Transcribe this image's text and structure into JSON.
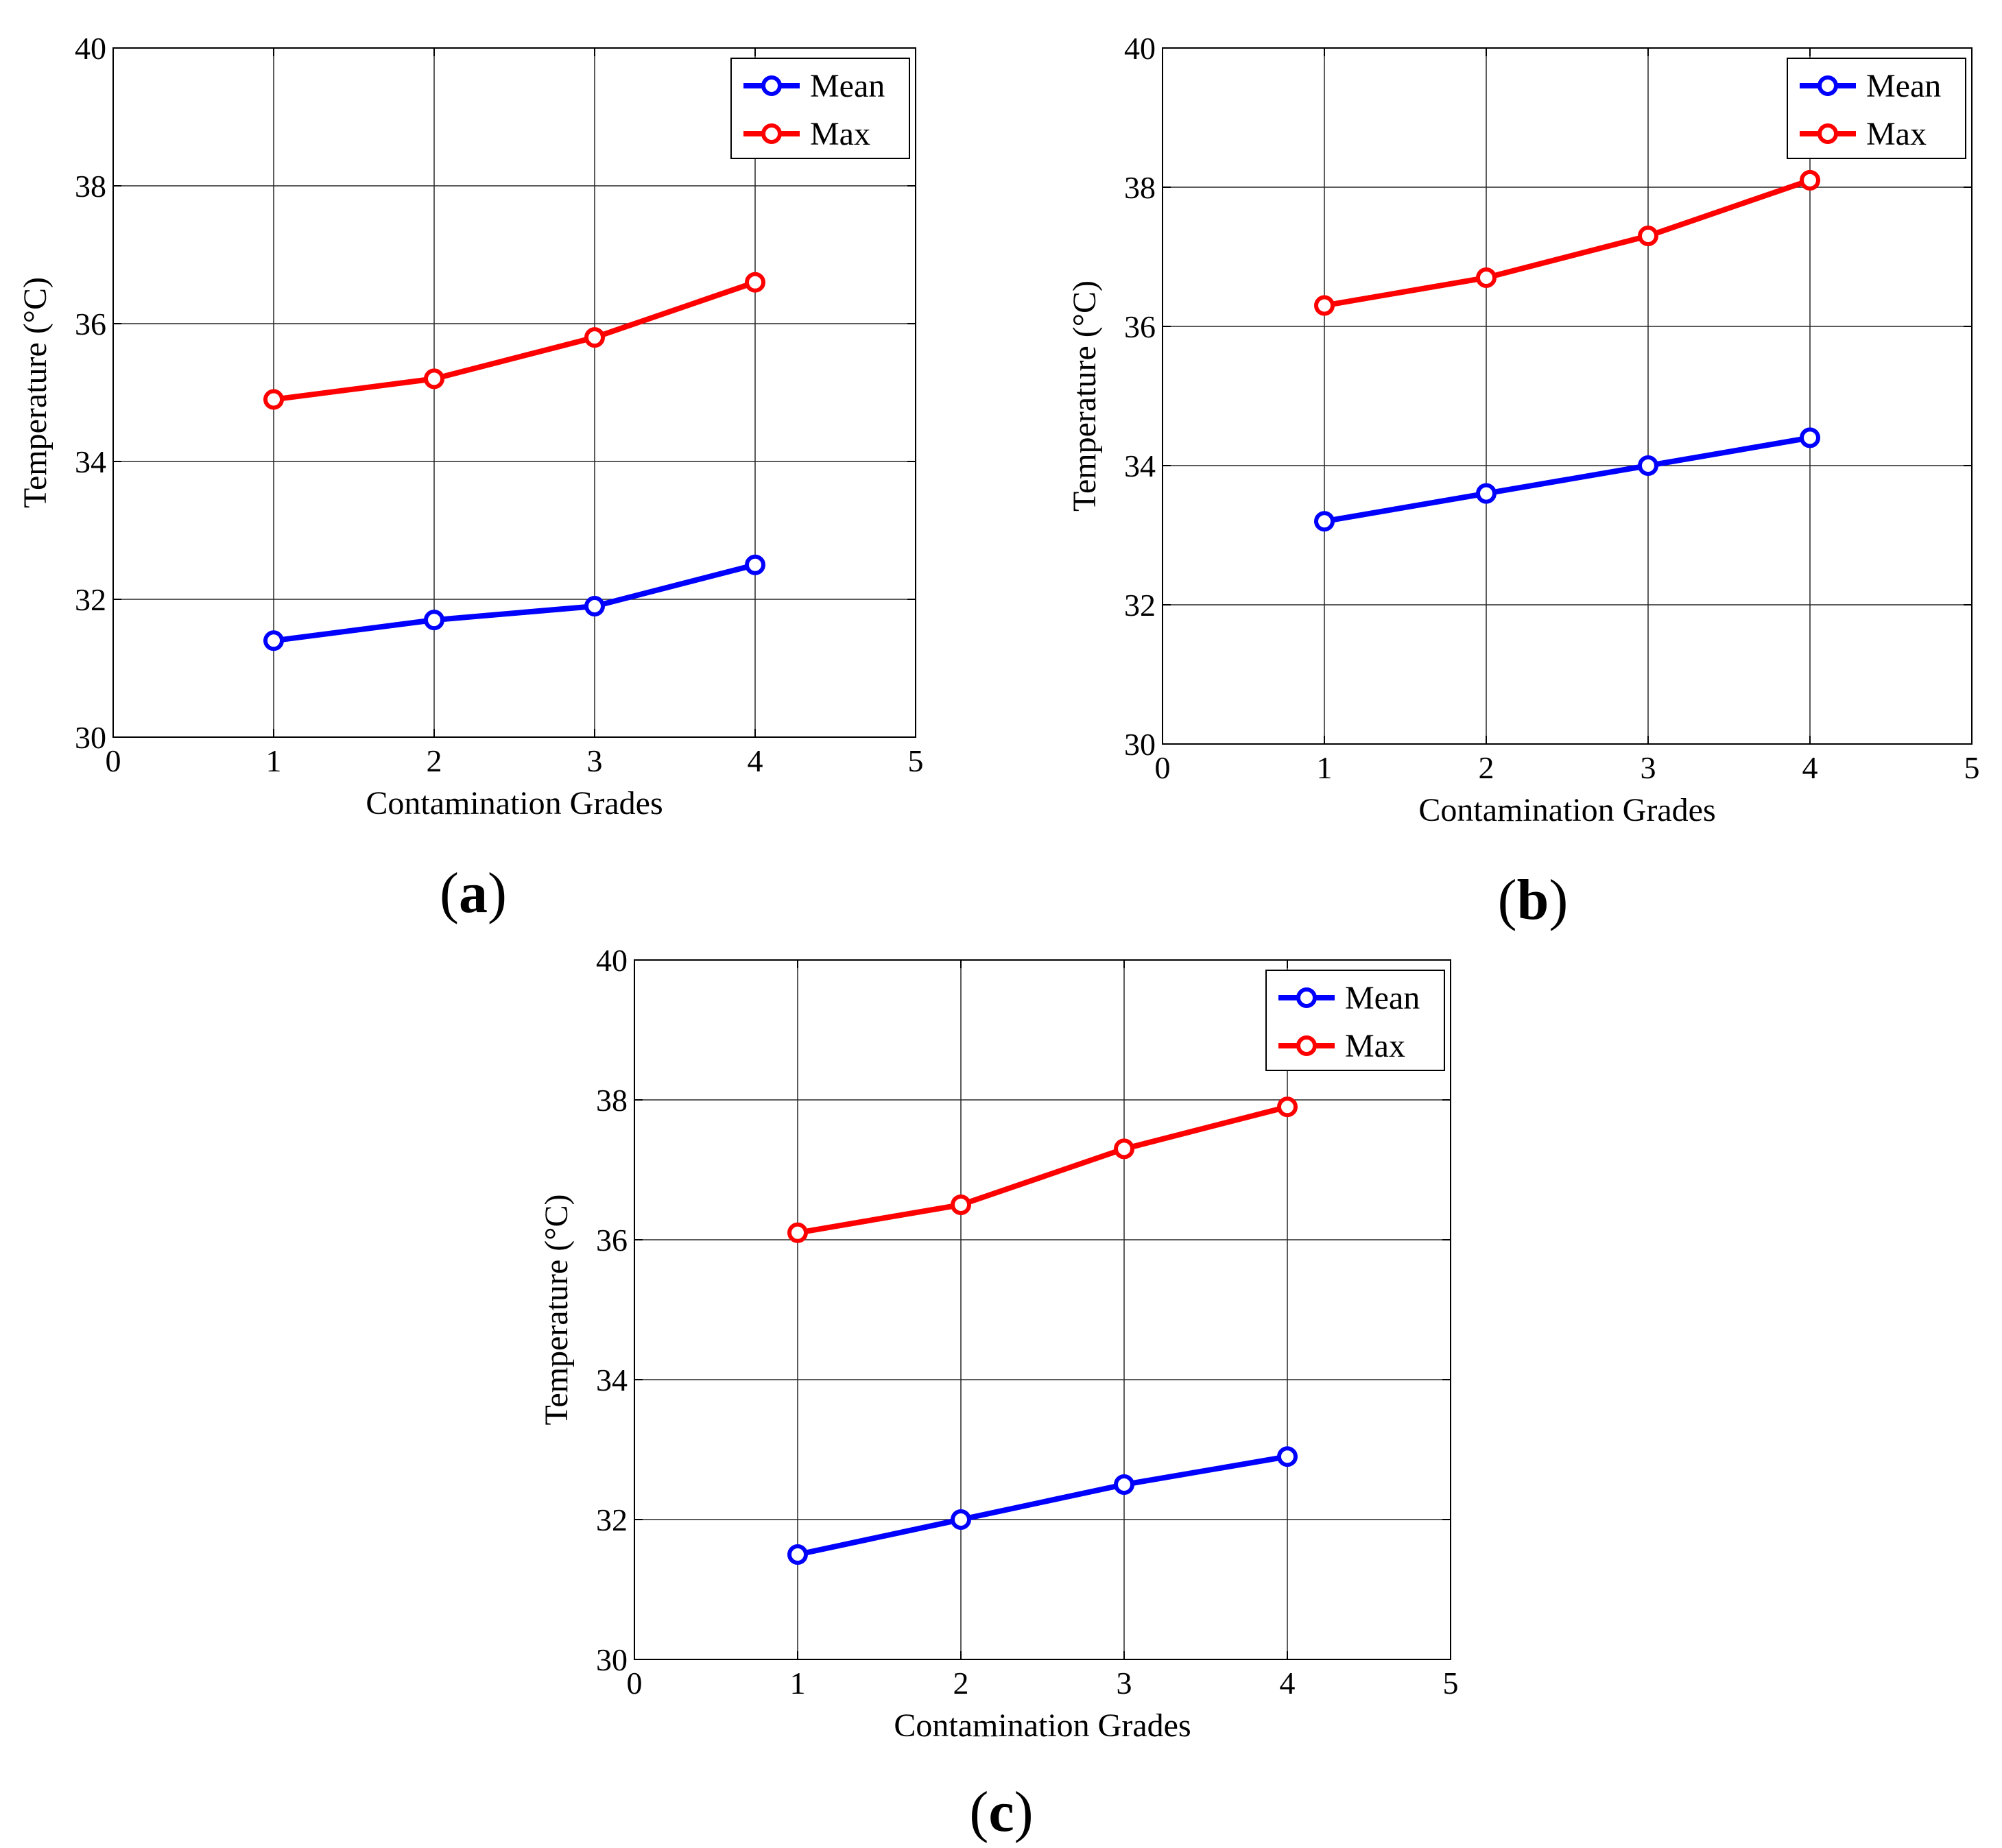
{
  "chart_data": [
    {
      "type": "line",
      "panel_label": "a",
      "xlabel": "Contamination Grades",
      "ylabel": "Temperature (°C)",
      "xlim": [
        0,
        5
      ],
      "ylim": [
        30,
        40
      ],
      "xticks": [
        "0",
        "1",
        "2",
        "3",
        "4",
        "5"
      ],
      "yticks": [
        "30",
        "32",
        "34",
        "36",
        "38",
        "40"
      ],
      "grid": true,
      "legend": "top-right",
      "x": [
        1,
        2,
        3,
        4
      ],
      "series": [
        {
          "name": "Mean",
          "color": "#0000ff",
          "values": [
            31.4,
            31.7,
            31.9,
            32.5
          ]
        },
        {
          "name": "Max",
          "color": "#ff0000",
          "values": [
            34.9,
            35.2,
            35.8,
            36.6
          ]
        }
      ]
    },
    {
      "type": "line",
      "panel_label": "b",
      "xlabel": "Contamination Grades",
      "ylabel": "Temperature (°C)",
      "xlim": [
        0,
        5
      ],
      "ylim": [
        30,
        40
      ],
      "xticks": [
        "0",
        "1",
        "2",
        "3",
        "4",
        "5"
      ],
      "yticks": [
        "30",
        "32",
        "34",
        "36",
        "38",
        "40"
      ],
      "grid": true,
      "legend": "top-right",
      "x": [
        1,
        2,
        3,
        4
      ],
      "series": [
        {
          "name": "Mean",
          "color": "#0000ff",
          "values": [
            33.2,
            33.6,
            34.0,
            34.4
          ]
        },
        {
          "name": "Max",
          "color": "#ff0000",
          "values": [
            36.3,
            36.7,
            37.3,
            38.1
          ]
        }
      ]
    },
    {
      "type": "line",
      "panel_label": "c",
      "xlabel": "Contamination Grades",
      "ylabel": "Temperature (°C)",
      "xlim": [
        0,
        5
      ],
      "ylim": [
        30,
        40
      ],
      "xticks": [
        "0",
        "1",
        "2",
        "3",
        "4",
        "5"
      ],
      "yticks": [
        "30",
        "32",
        "34",
        "36",
        "38",
        "40"
      ],
      "grid": true,
      "legend": "top-right",
      "x": [
        1,
        2,
        3,
        4
      ],
      "series": [
        {
          "name": "Mean",
          "color": "#0000ff",
          "values": [
            31.5,
            32.0,
            32.5,
            32.9
          ]
        },
        {
          "name": "Max",
          "color": "#ff0000",
          "values": [
            36.1,
            36.5,
            37.3,
            37.9
          ]
        }
      ]
    }
  ]
}
